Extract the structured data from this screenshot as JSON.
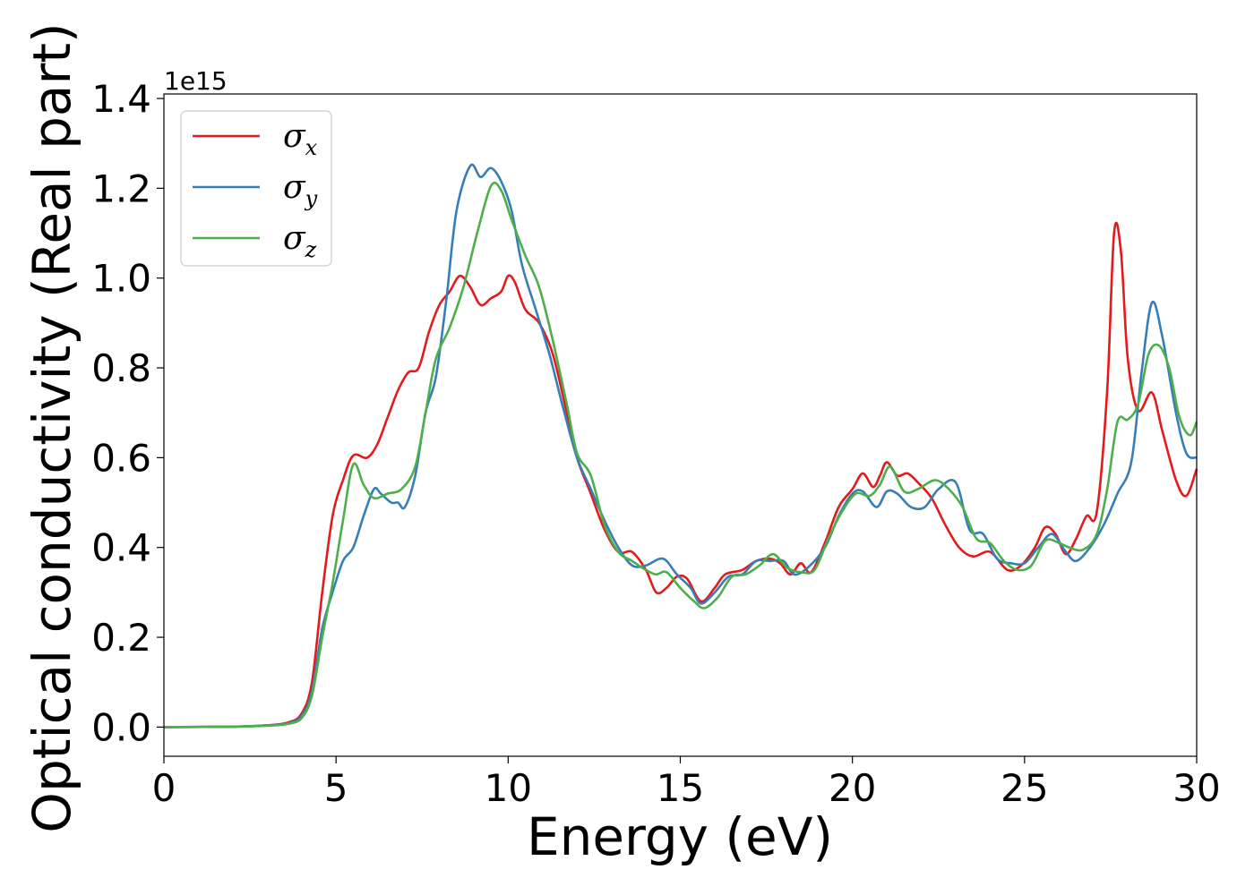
{
  "chart_data": {
    "type": "line",
    "xlabel": "Energy (eV)",
    "ylabel": "Optical conductivity (Real part)",
    "y_offset_label": "1e15",
    "xlim": [
      0,
      30
    ],
    "ylim": [
      -0.065,
      1.41
    ],
    "x_ticks": [
      0,
      5,
      10,
      15,
      20,
      25,
      30
    ],
    "x_tick_labels": [
      "0",
      "5",
      "10",
      "15",
      "20",
      "25",
      "30"
    ],
    "y_ticks": [
      0.0,
      0.2,
      0.4,
      0.6,
      0.8,
      1.0,
      1.2,
      1.4
    ],
    "y_tick_labels": [
      "0.0",
      "0.2",
      "0.4",
      "0.6",
      "0.8",
      "1.0",
      "1.2",
      "1.4"
    ],
    "grid": false,
    "legend_position": "top-left",
    "series": [
      {
        "name": "σx",
        "symbol": "σ",
        "subscript": "x",
        "color": "#e41a1c",
        "points": [
          [
            0,
            0
          ],
          [
            2,
            0.001
          ],
          [
            3,
            0.004
          ],
          [
            3.6,
            0.01
          ],
          [
            4.0,
            0.03
          ],
          [
            4.3,
            0.1
          ],
          [
            4.6,
            0.3
          ],
          [
            4.9,
            0.47
          ],
          [
            5.2,
            0.55
          ],
          [
            5.5,
            0.605
          ],
          [
            5.9,
            0.6
          ],
          [
            6.2,
            0.63
          ],
          [
            6.5,
            0.69
          ],
          [
            6.8,
            0.75
          ],
          [
            7.1,
            0.79
          ],
          [
            7.4,
            0.8
          ],
          [
            7.7,
            0.88
          ],
          [
            8.0,
            0.94
          ],
          [
            8.3,
            0.97
          ],
          [
            8.6,
            1.005
          ],
          [
            8.9,
            0.98
          ],
          [
            9.2,
            0.94
          ],
          [
            9.5,
            0.955
          ],
          [
            9.8,
            0.97
          ],
          [
            10.0,
            1.005
          ],
          [
            10.2,
            0.99
          ],
          [
            10.5,
            0.93
          ],
          [
            10.9,
            0.9
          ],
          [
            11.3,
            0.83
          ],
          [
            11.7,
            0.7
          ],
          [
            12.0,
            0.6
          ],
          [
            12.4,
            0.52
          ],
          [
            12.8,
            0.44
          ],
          [
            13.2,
            0.39
          ],
          [
            13.6,
            0.39
          ],
          [
            14.0,
            0.35
          ],
          [
            14.3,
            0.3
          ],
          [
            14.6,
            0.31
          ],
          [
            14.9,
            0.335
          ],
          [
            15.2,
            0.33
          ],
          [
            15.6,
            0.28
          ],
          [
            16.0,
            0.31
          ],
          [
            16.3,
            0.34
          ],
          [
            16.8,
            0.35
          ],
          [
            17.2,
            0.37
          ],
          [
            17.6,
            0.375
          ],
          [
            17.9,
            0.365
          ],
          [
            18.2,
            0.34
          ],
          [
            18.5,
            0.365
          ],
          [
            18.8,
            0.345
          ],
          [
            19.2,
            0.41
          ],
          [
            19.6,
            0.49
          ],
          [
            20.0,
            0.53
          ],
          [
            20.3,
            0.565
          ],
          [
            20.6,
            0.535
          ],
          [
            20.8,
            0.56
          ],
          [
            21.0,
            0.59
          ],
          [
            21.3,
            0.56
          ],
          [
            21.6,
            0.565
          ],
          [
            21.9,
            0.545
          ],
          [
            22.3,
            0.51
          ],
          [
            22.7,
            0.45
          ],
          [
            23.1,
            0.4
          ],
          [
            23.5,
            0.38
          ],
          [
            24.0,
            0.39
          ],
          [
            24.5,
            0.35
          ],
          [
            24.9,
            0.36
          ],
          [
            25.3,
            0.4
          ],
          [
            25.6,
            0.445
          ],
          [
            25.9,
            0.43
          ],
          [
            26.2,
            0.385
          ],
          [
            26.5,
            0.42
          ],
          [
            26.8,
            0.47
          ],
          [
            27.1,
            0.48
          ],
          [
            27.4,
            0.75
          ],
          [
            27.6,
            1.1
          ],
          [
            27.8,
            1.06
          ],
          [
            28.0,
            0.82
          ],
          [
            28.3,
            0.705
          ],
          [
            28.7,
            0.745
          ],
          [
            29.0,
            0.66
          ],
          [
            29.4,
            0.55
          ],
          [
            29.7,
            0.515
          ],
          [
            30.0,
            0.575
          ]
        ]
      },
      {
        "name": "σy",
        "symbol": "σ",
        "subscript": "y",
        "color": "#377eb8",
        "points": [
          [
            0,
            0
          ],
          [
            2,
            0.001
          ],
          [
            3,
            0.004
          ],
          [
            3.6,
            0.008
          ],
          [
            4.0,
            0.025
          ],
          [
            4.3,
            0.08
          ],
          [
            4.6,
            0.22
          ],
          [
            4.9,
            0.3
          ],
          [
            5.2,
            0.37
          ],
          [
            5.5,
            0.4
          ],
          [
            5.8,
            0.47
          ],
          [
            6.1,
            0.53
          ],
          [
            6.3,
            0.52
          ],
          [
            6.6,
            0.5
          ],
          [
            6.8,
            0.5
          ],
          [
            7.0,
            0.49
          ],
          [
            7.3,
            0.56
          ],
          [
            7.6,
            0.7
          ],
          [
            7.9,
            0.78
          ],
          [
            8.2,
            0.95
          ],
          [
            8.5,
            1.15
          ],
          [
            8.9,
            1.25
          ],
          [
            9.2,
            1.225
          ],
          [
            9.5,
            1.245
          ],
          [
            9.8,
            1.215
          ],
          [
            10.1,
            1.15
          ],
          [
            10.4,
            1.03
          ],
          [
            10.8,
            0.93
          ],
          [
            11.2,
            0.83
          ],
          [
            11.6,
            0.71
          ],
          [
            12.0,
            0.6
          ],
          [
            12.4,
            0.53
          ],
          [
            12.8,
            0.46
          ],
          [
            13.2,
            0.4
          ],
          [
            13.6,
            0.36
          ],
          [
            14.0,
            0.36
          ],
          [
            14.5,
            0.375
          ],
          [
            14.9,
            0.34
          ],
          [
            15.3,
            0.31
          ],
          [
            15.6,
            0.275
          ],
          [
            16.0,
            0.3
          ],
          [
            16.4,
            0.335
          ],
          [
            16.8,
            0.34
          ],
          [
            17.2,
            0.37
          ],
          [
            17.6,
            0.37
          ],
          [
            18.0,
            0.37
          ],
          [
            18.3,
            0.34
          ],
          [
            18.7,
            0.355
          ],
          [
            19.2,
            0.4
          ],
          [
            19.6,
            0.47
          ],
          [
            20.0,
            0.52
          ],
          [
            20.3,
            0.525
          ],
          [
            20.7,
            0.49
          ],
          [
            21.0,
            0.525
          ],
          [
            21.3,
            0.52
          ],
          [
            21.7,
            0.49
          ],
          [
            22.1,
            0.49
          ],
          [
            22.5,
            0.53
          ],
          [
            23.0,
            0.545
          ],
          [
            23.4,
            0.44
          ],
          [
            23.8,
            0.43
          ],
          [
            24.2,
            0.375
          ],
          [
            24.6,
            0.365
          ],
          [
            25.0,
            0.365
          ],
          [
            25.4,
            0.4
          ],
          [
            25.8,
            0.43
          ],
          [
            26.2,
            0.39
          ],
          [
            26.5,
            0.37
          ],
          [
            26.9,
            0.4
          ],
          [
            27.3,
            0.45
          ],
          [
            27.7,
            0.52
          ],
          [
            28.1,
            0.59
          ],
          [
            28.4,
            0.79
          ],
          [
            28.7,
            0.945
          ],
          [
            29.0,
            0.87
          ],
          [
            29.4,
            0.7
          ],
          [
            29.7,
            0.61
          ],
          [
            30.0,
            0.6
          ]
        ]
      },
      {
        "name": "σz",
        "symbol": "σ",
        "subscript": "z",
        "color": "#4daf4a",
        "points": [
          [
            0,
            0
          ],
          [
            2,
            0.001
          ],
          [
            3,
            0.003
          ],
          [
            3.6,
            0.007
          ],
          [
            4.0,
            0.02
          ],
          [
            4.3,
            0.07
          ],
          [
            4.6,
            0.2
          ],
          [
            4.9,
            0.32
          ],
          [
            5.2,
            0.46
          ],
          [
            5.5,
            0.585
          ],
          [
            5.8,
            0.54
          ],
          [
            6.1,
            0.51
          ],
          [
            6.5,
            0.52
          ],
          [
            6.9,
            0.53
          ],
          [
            7.3,
            0.58
          ],
          [
            7.6,
            0.7
          ],
          [
            7.9,
            0.82
          ],
          [
            8.3,
            0.89
          ],
          [
            8.7,
            0.98
          ],
          [
            9.1,
            1.1
          ],
          [
            9.5,
            1.205
          ],
          [
            9.8,
            1.195
          ],
          [
            10.1,
            1.13
          ],
          [
            10.5,
            1.05
          ],
          [
            10.9,
            0.98
          ],
          [
            11.3,
            0.86
          ],
          [
            11.7,
            0.72
          ],
          [
            12.0,
            0.61
          ],
          [
            12.4,
            0.56
          ],
          [
            12.8,
            0.45
          ],
          [
            13.2,
            0.39
          ],
          [
            13.6,
            0.37
          ],
          [
            14.0,
            0.35
          ],
          [
            14.3,
            0.34
          ],
          [
            14.6,
            0.345
          ],
          [
            15.0,
            0.31
          ],
          [
            15.4,
            0.28
          ],
          [
            15.7,
            0.265
          ],
          [
            16.1,
            0.29
          ],
          [
            16.5,
            0.335
          ],
          [
            16.9,
            0.34
          ],
          [
            17.3,
            0.36
          ],
          [
            17.7,
            0.385
          ],
          [
            18.1,
            0.355
          ],
          [
            18.5,
            0.345
          ],
          [
            18.9,
            0.35
          ],
          [
            19.3,
            0.42
          ],
          [
            19.7,
            0.48
          ],
          [
            20.1,
            0.52
          ],
          [
            20.5,
            0.515
          ],
          [
            20.8,
            0.54
          ],
          [
            21.1,
            0.58
          ],
          [
            21.5,
            0.525
          ],
          [
            21.9,
            0.53
          ],
          [
            22.4,
            0.55
          ],
          [
            22.8,
            0.53
          ],
          [
            23.2,
            0.49
          ],
          [
            23.6,
            0.42
          ],
          [
            24.0,
            0.41
          ],
          [
            24.4,
            0.37
          ],
          [
            24.8,
            0.35
          ],
          [
            25.2,
            0.36
          ],
          [
            25.6,
            0.415
          ],
          [
            26.0,
            0.41
          ],
          [
            26.3,
            0.4
          ],
          [
            26.7,
            0.395
          ],
          [
            27.1,
            0.43
          ],
          [
            27.4,
            0.53
          ],
          [
            27.7,
            0.68
          ],
          [
            28.0,
            0.685
          ],
          [
            28.3,
            0.72
          ],
          [
            28.6,
            0.83
          ],
          [
            28.9,
            0.85
          ],
          [
            29.2,
            0.8
          ],
          [
            29.5,
            0.69
          ],
          [
            29.8,
            0.65
          ],
          [
            30.0,
            0.68
          ]
        ]
      }
    ]
  }
}
